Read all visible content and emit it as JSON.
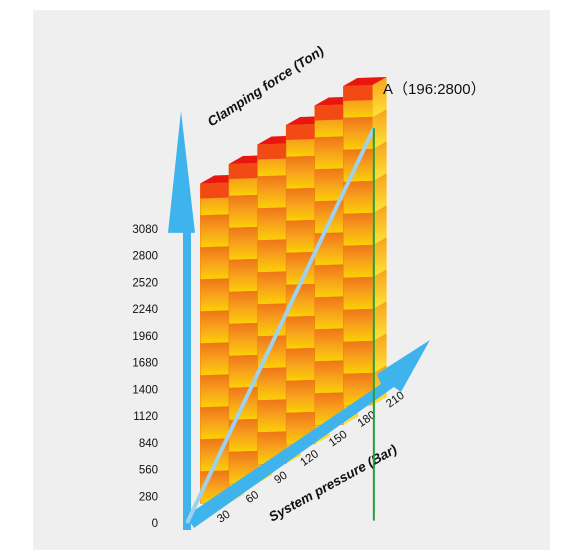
{
  "chart_data": {
    "type": "bar",
    "style": "3d-isometric",
    "title": "",
    "xlabel": "System pressure (Bar)",
    "ylabel": "Clamping force (Ton)",
    "categories": [
      "30",
      "60",
      "90",
      "120",
      "150",
      "180",
      "210"
    ],
    "x_ticks": [
      "30",
      "60",
      "90",
      "120",
      "150",
      "180",
      "210"
    ],
    "y_ticks": [
      "0",
      "280",
      "560",
      "840",
      "1120",
      "1400",
      "1680",
      "1960",
      "2240",
      "2520",
      "2800",
      "3080"
    ],
    "ylim": [
      0,
      3080
    ],
    "line": {
      "x": [
        0,
        196
      ],
      "y": [
        0,
        2800
      ],
      "color": "#9fd0ec"
    },
    "marker": {
      "x": 196,
      "y": 2800,
      "color": "#22a03a"
    },
    "annotation": "A（196:2800）",
    "colors": {
      "axis": "#3fb4ec",
      "bar_top": "#e8160f",
      "bar_front": "#f5a623",
      "bar_side": "#fbd20a"
    }
  }
}
